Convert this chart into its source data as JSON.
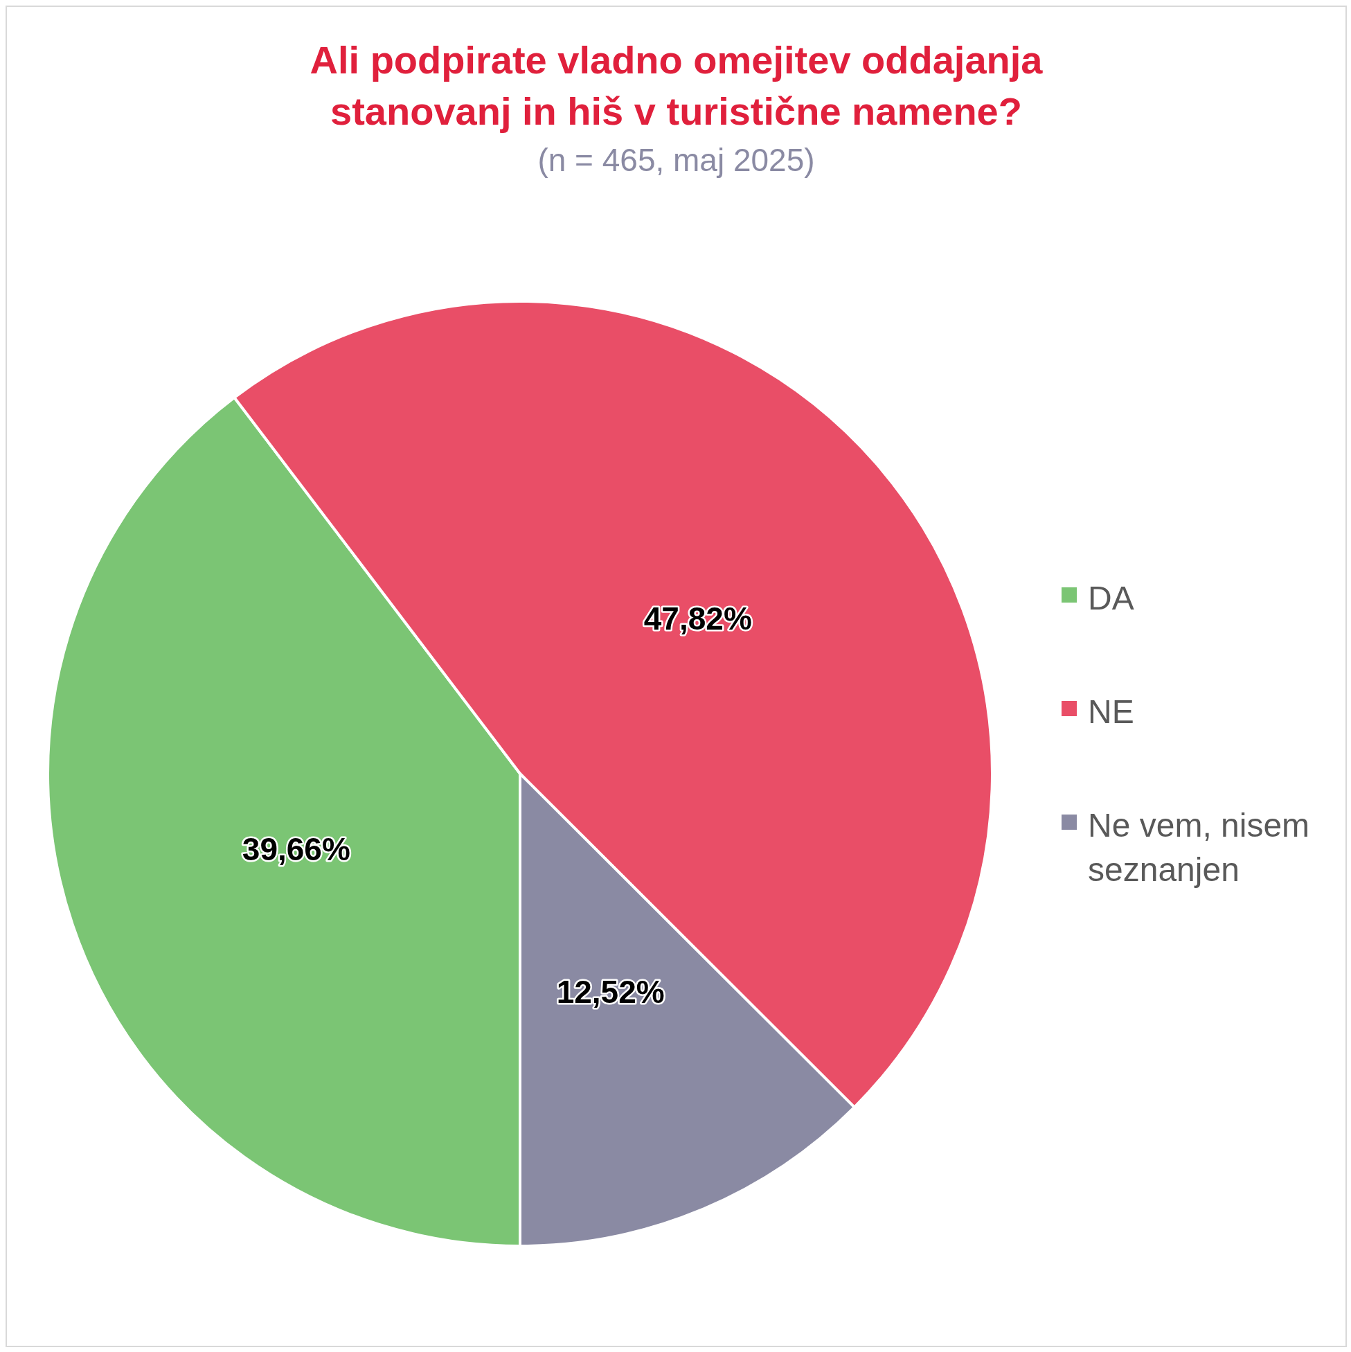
{
  "chart_data": {
    "type": "pie",
    "title": "Ali podpirate vladno omejitev oddajanja stanovanj in hiš v turistične namene?",
    "subtitle": "(n = 465, maj 2025)",
    "categories": [
      "DA",
      "NE",
      "Ne vem, nisem seznanjen"
    ],
    "values": [
      39.66,
      47.82,
      12.52
    ],
    "colors": [
      "#7bc574",
      "#e94e67",
      "#8a8aa3"
    ],
    "value_labels": [
      "39,66%",
      "47,82%",
      "12,52%"
    ],
    "legend": "right"
  }
}
